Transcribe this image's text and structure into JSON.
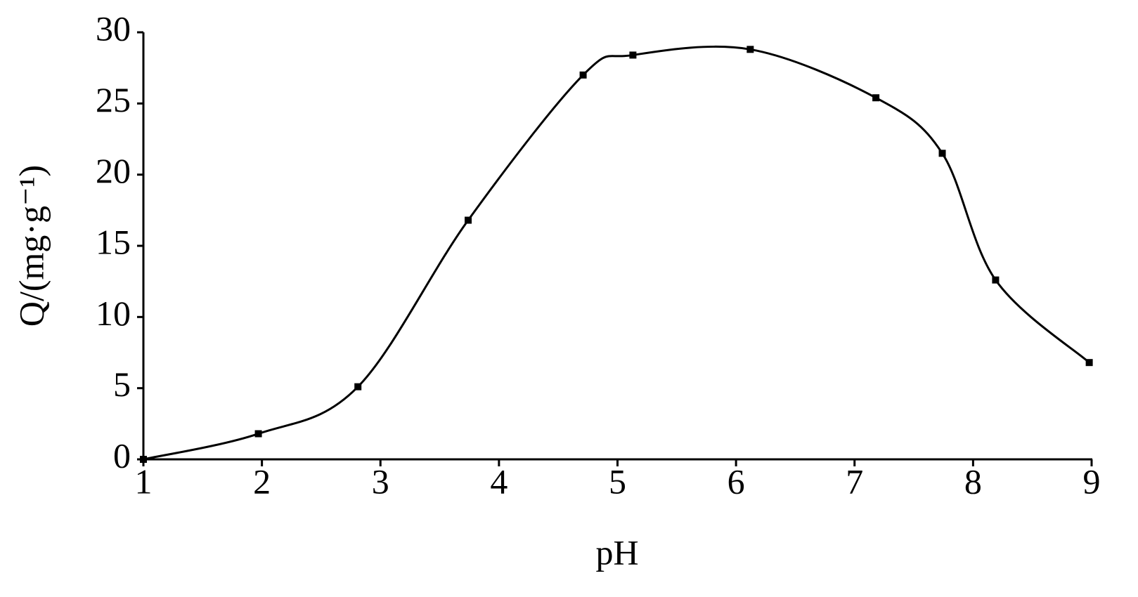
{
  "chart_data": {
    "type": "line",
    "xlabel": "pH",
    "ylabel": "Q/(mg·g⁻¹)",
    "x": [
      1,
      1.97,
      2.81,
      3.74,
      4.71,
      5.13,
      6.12,
      7.18,
      7.74,
      8.19,
      8.98
    ],
    "values": [
      0,
      1.8,
      5.1,
      16.8,
      27.0,
      28.4,
      28.8,
      25.4,
      21.5,
      12.6,
      6.8
    ],
    "color": "#000000",
    "smooth": true,
    "markers": true,
    "xlim": [
      1,
      9
    ],
    "xticks": [
      1,
      2,
      3,
      4,
      5,
      6,
      7,
      8,
      9
    ],
    "ylim": [
      0,
      30
    ],
    "yticks": [
      0,
      5,
      10,
      15,
      20,
      25,
      30
    ],
    "grid": false
  }
}
